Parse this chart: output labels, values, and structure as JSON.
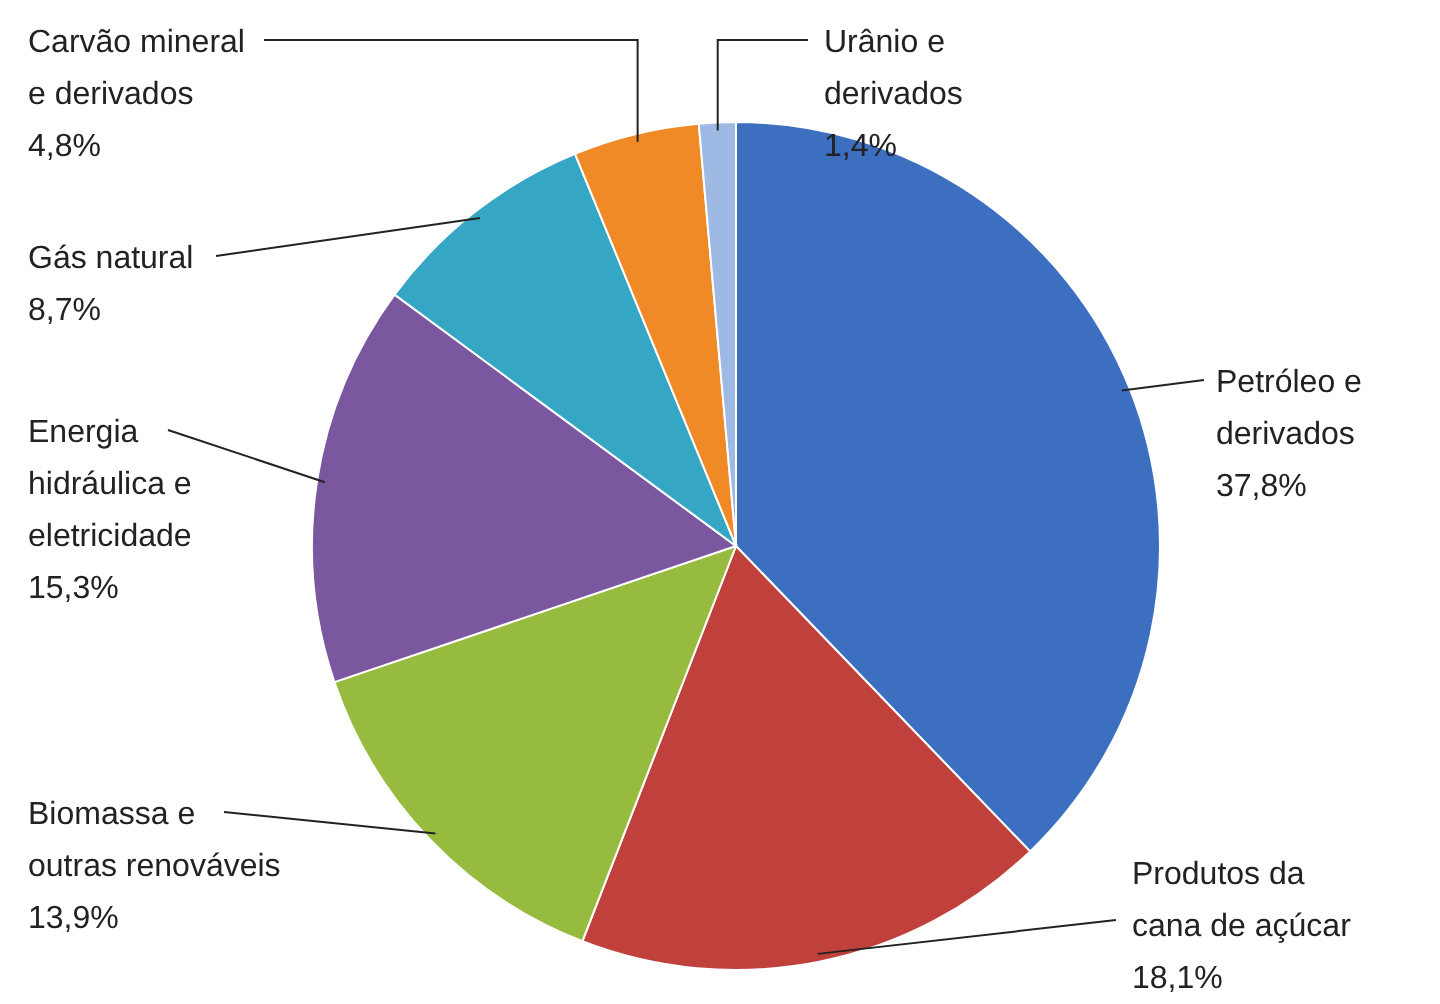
{
  "chart_data": {
    "type": "pie",
    "categories": [
      "Petróleo e\nderivados",
      "Produtos da\ncana de açúcar",
      "Biomassa e\noutras renováveis",
      "Energia\nhidráulica e\neletricidade",
      "Gás natural",
      "Carvão mineral\ne derivados",
      "Urânio e\nderivados"
    ],
    "values": [
      37.8,
      18.1,
      13.9,
      15.3,
      8.7,
      4.8,
      1.4
    ],
    "value_labels": [
      "37,8%",
      "18,1%",
      "13,9%",
      "15,3%",
      "8,7%",
      "4,8%",
      "1,4%"
    ],
    "colors": [
      "#3d6fc0",
      "#c0403b",
      "#97bb3f",
      "#7b57a0",
      "#35a6c4",
      "#f08a27",
      "#9db9e4"
    ]
  }
}
